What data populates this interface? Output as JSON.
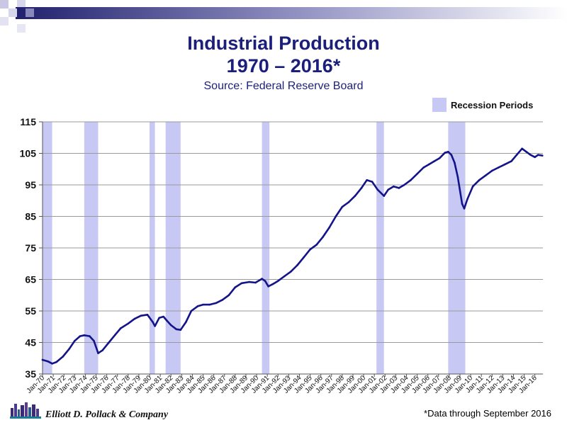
{
  "header": {
    "title_line1": "Industrial Production",
    "title_line2": "1970 – 2016*",
    "source": "Source: Federal Reserve Board"
  },
  "footer": {
    "company": "Elliott D. Pollack & Company",
    "note": "*Data through  September 2016"
  },
  "colors": {
    "title": "#1b1f7a",
    "line": "#14148a",
    "recession": "#c8c8f5",
    "grid": "#9a9a9a"
  },
  "chart_data": {
    "type": "line",
    "title": "Industrial Production 1970 – 2016*",
    "subtitle": "Source: Federal Reserve Board",
    "xlabel": "",
    "ylabel": "",
    "xlim": [
      1970,
      2016.75
    ],
    "ylim": [
      35,
      115
    ],
    "yticks": [
      35,
      45,
      55,
      65,
      75,
      85,
      95,
      105,
      115
    ],
    "xtick_labels": [
      "Jan-70",
      "Jan-71",
      "Jan-72",
      "Jan-73",
      "Jan-74",
      "Jan-75",
      "Jan-76",
      "Jan-77",
      "Jan-78",
      "Jan-79",
      "Jan-80",
      "Jan-81",
      "Jan-82",
      "Jan-83",
      "Jan-84",
      "Jan-85",
      "Jan-86",
      "Jan-87",
      "Jan-88",
      "Jan-89",
      "Jan-90",
      "Jan-91",
      "Jan-92",
      "Jan-93",
      "Jan-94",
      "Jan-95",
      "Jan-96",
      "Jan-97",
      "Jan-98",
      "Jan-99",
      "Jan-00",
      "Jan-01",
      "Jan-02",
      "Jan-03",
      "Jan-04",
      "Jan-05",
      "Jan-06",
      "Jan-07",
      "Jan-08",
      "Jan-09",
      "Jan-10",
      "Jan-11",
      "Jan-12",
      "Jan-13",
      "Jan-14",
      "Jan-15",
      "Jan-16"
    ],
    "grid": true,
    "legend": {
      "label": "Recession Periods",
      "placement": "top-right"
    },
    "recessions": [
      [
        1970.0,
        1970.9
      ],
      [
        1973.9,
        1975.2
      ],
      [
        1980.0,
        1980.5
      ],
      [
        1981.5,
        1982.9
      ],
      [
        1990.5,
        1991.2
      ],
      [
        2001.2,
        2001.9
      ],
      [
        2007.9,
        2009.5
      ]
    ],
    "series": [
      {
        "name": "Industrial Production",
        "x": [
          1970.0,
          1970.5,
          1970.9,
          1971.3,
          1971.9,
          1972.5,
          1973.0,
          1973.5,
          1973.9,
          1974.4,
          1974.8,
          1975.2,
          1975.6,
          1976.2,
          1976.8,
          1977.3,
          1978.0,
          1978.6,
          1979.2,
          1979.8,
          1980.3,
          1980.5,
          1980.9,
          1981.3,
          1981.6,
          1982.0,
          1982.5,
          1982.9,
          1983.4,
          1983.9,
          1984.5,
          1985.0,
          1985.6,
          1986.2,
          1986.8,
          1987.4,
          1988.0,
          1988.6,
          1989.3,
          1989.9,
          1990.5,
          1990.8,
          1991.1,
          1991.5,
          1992.0,
          1992.6,
          1993.2,
          1993.8,
          1994.4,
          1995.0,
          1995.6,
          1996.2,
          1996.8,
          1997.4,
          1998.0,
          1998.6,
          1999.2,
          1999.8,
          2000.3,
          2000.8,
          2001.3,
          2001.9,
          2002.3,
          2002.8,
          2003.3,
          2003.8,
          2004.4,
          2005.0,
          2005.6,
          2006.1,
          2006.6,
          2007.1,
          2007.6,
          2007.9,
          2008.2,
          2008.5,
          2008.8,
          2009.2,
          2009.4,
          2009.7,
          2010.2,
          2010.8,
          2011.4,
          2012.0,
          2012.6,
          2013.2,
          2013.8,
          2014.3,
          2014.8,
          2015.2,
          2015.6,
          2016.0,
          2016.3,
          2016.7
        ],
        "values": [
          39.5,
          39.0,
          38.3,
          38.8,
          40.5,
          43.0,
          45.5,
          47.0,
          47.3,
          47.0,
          45.5,
          41.6,
          42.5,
          45.0,
          47.5,
          49.5,
          51.0,
          52.5,
          53.5,
          53.8,
          51.5,
          50.2,
          52.8,
          53.2,
          52.0,
          50.5,
          49.2,
          49.0,
          51.5,
          55.0,
          56.5,
          57.0,
          57.0,
          57.5,
          58.5,
          60.0,
          62.5,
          63.8,
          64.2,
          64.0,
          65.2,
          64.5,
          62.8,
          63.5,
          64.5,
          66.0,
          67.5,
          69.5,
          72.0,
          74.5,
          76.0,
          78.5,
          81.5,
          85.0,
          88.0,
          89.5,
          91.5,
          94.0,
          96.5,
          96.0,
          93.5,
          91.5,
          93.5,
          94.5,
          94.0,
          95.0,
          96.5,
          98.5,
          100.5,
          101.5,
          102.5,
          103.5,
          105.2,
          105.5,
          104.5,
          102.0,
          97.5,
          89.0,
          87.5,
          90.5,
          94.5,
          96.5,
          98.0,
          99.5,
          100.5,
          101.5,
          102.5,
          104.5,
          106.5,
          105.5,
          104.5,
          103.8,
          104.5,
          104.3
        ]
      }
    ]
  }
}
